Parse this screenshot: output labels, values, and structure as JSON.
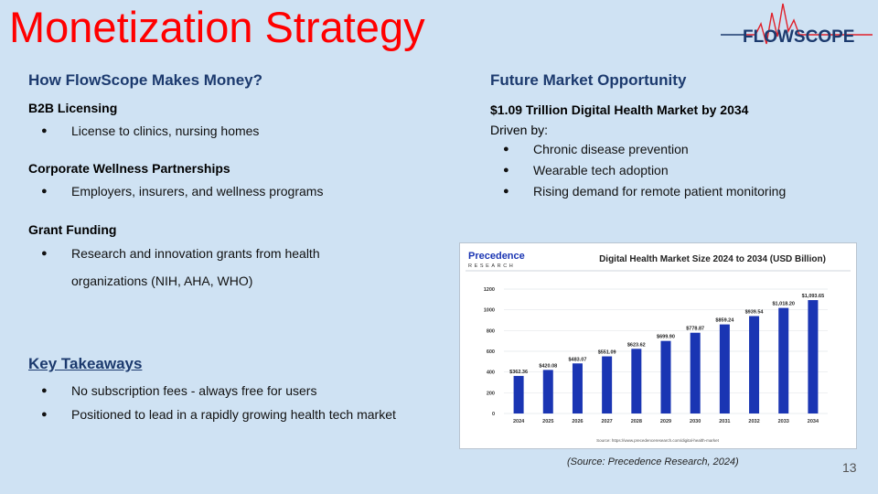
{
  "slide": {
    "title": "Monetization Strategy",
    "page_number": "13"
  },
  "logo": {
    "text": "FLOWSCOPE"
  },
  "left": {
    "heading": "How FlowScope Makes Money?",
    "sections": [
      {
        "title": "B2B Licensing",
        "bullets": [
          "License to clinics, nursing homes"
        ]
      },
      {
        "title": "Corporate Wellness Partnerships",
        "bullets": [
          "Employers, insurers, and wellness programs"
        ]
      },
      {
        "title": "Grant Funding",
        "bullets": [
          "Research and innovation grants from health organizations (NIH, AHA, WHO)"
        ]
      }
    ],
    "takeaways_heading": "Key Takeaways",
    "takeaways": [
      "No subscription fees - always free for users",
      "Positioned to lead in a rapidly growing health tech market"
    ]
  },
  "right": {
    "heading": "Future Market Opportunity",
    "headline": "$1.09 Trillion Digital Health Market by 2034",
    "driven_by": "Driven by:",
    "drivers": [
      "Chronic disease prevention",
      "Wearable tech adoption",
      "Rising demand for remote patient monitoring"
    ],
    "source_caption": "(Source: Precedence Research, 2024)"
  },
  "chart_data": {
    "type": "bar",
    "title": "Digital Health Market Size 2024 to 2034 (USD Billion)",
    "publisher_line1": "Precedence",
    "publisher_line2": "RESEARCH",
    "categories": [
      "2024",
      "2025",
      "2026",
      "2027",
      "2028",
      "2029",
      "2030",
      "2031",
      "2032",
      "2033",
      "2034"
    ],
    "values": [
      362.36,
      420.08,
      483.07,
      551.09,
      623.62,
      699.9,
      778.87,
      859.24,
      939.54,
      1018.2,
      1093.65
    ],
    "value_labels": [
      "$362.36",
      "$420.08",
      "$483.07",
      "$551.09",
      "$623.62",
      "$699.90",
      "$778.87",
      "$859.24",
      "$939.54",
      "$1,018.20",
      "$1,093.65"
    ],
    "yticks": [
      "0",
      "200",
      "400",
      "600",
      "800",
      "1000",
      "1200"
    ],
    "ylim": [
      0,
      1200
    ],
    "bar_color": "#1a35b3",
    "grid": true,
    "source_note": "Source: https://www.precedenceresearch.com/digital-health-market"
  }
}
